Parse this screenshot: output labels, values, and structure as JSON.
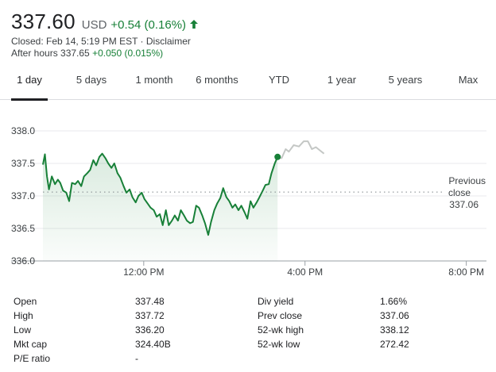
{
  "quote": {
    "price": "337.60",
    "currency": "USD",
    "change": "+0.54 (0.16%)",
    "closed_text": "Closed: Feb 14, 5:19 PM EST",
    "separator": " · ",
    "disclaimer": "Disclaimer",
    "after_hours_label": "After hours 337.65",
    "after_hours_change": "+0.050 (0.015%)",
    "up_color": "#188038"
  },
  "tabs": [
    {
      "label": "1 day",
      "active": true
    },
    {
      "label": "5 days",
      "active": false
    },
    {
      "label": "1 month",
      "active": false
    },
    {
      "label": "6 months",
      "active": false
    },
    {
      "label": "YTD",
      "active": false
    },
    {
      "label": "1 year",
      "active": false
    },
    {
      "label": "5 years",
      "active": false
    },
    {
      "label": "Max",
      "active": false
    }
  ],
  "chart_data": {
    "type": "line",
    "ylim": [
      336.0,
      338.0
    ],
    "y_ticks": [
      "338.0",
      "337.5",
      "337.0",
      "336.5",
      "336.0"
    ],
    "x_ticks": [
      {
        "label": "12:00 PM",
        "t": 12.0
      },
      {
        "label": "4:00 PM",
        "t": 16.0
      },
      {
        "label": "8:00 PM",
        "t": 20.0
      }
    ],
    "x_range_hours": [
      9.5,
      20.5
    ],
    "previous_close": {
      "value": 337.06,
      "label_line1": "Previous",
      "label_line2": "close",
      "label_value": "337.06"
    },
    "series": [
      {
        "session": "regular",
        "color": "#188038",
        "points": [
          [
            9.5,
            337.48
          ],
          [
            9.55,
            337.64
          ],
          [
            9.6,
            337.3
          ],
          [
            9.65,
            337.1
          ],
          [
            9.72,
            337.3
          ],
          [
            9.8,
            337.18
          ],
          [
            9.87,
            337.25
          ],
          [
            9.93,
            337.2
          ],
          [
            10.0,
            337.08
          ],
          [
            10.08,
            337.05
          ],
          [
            10.15,
            336.92
          ],
          [
            10.22,
            337.2
          ],
          [
            10.3,
            337.18
          ],
          [
            10.37,
            337.23
          ],
          [
            10.45,
            337.15
          ],
          [
            10.52,
            337.3
          ],
          [
            10.6,
            337.35
          ],
          [
            10.67,
            337.4
          ],
          [
            10.75,
            337.55
          ],
          [
            10.82,
            337.47
          ],
          [
            10.9,
            337.6
          ],
          [
            10.97,
            337.65
          ],
          [
            11.05,
            337.58
          ],
          [
            11.12,
            337.5
          ],
          [
            11.2,
            337.43
          ],
          [
            11.27,
            337.5
          ],
          [
            11.35,
            337.35
          ],
          [
            11.42,
            337.28
          ],
          [
            11.5,
            337.15
          ],
          [
            11.57,
            337.05
          ],
          [
            11.65,
            337.1
          ],
          [
            11.72,
            336.98
          ],
          [
            11.8,
            336.9
          ],
          [
            11.87,
            337.0
          ],
          [
            11.95,
            337.05
          ],
          [
            12.02,
            336.95
          ],
          [
            12.1,
            336.88
          ],
          [
            12.17,
            336.82
          ],
          [
            12.25,
            336.78
          ],
          [
            12.32,
            336.68
          ],
          [
            12.4,
            336.72
          ],
          [
            12.47,
            336.55
          ],
          [
            12.55,
            336.78
          ],
          [
            12.62,
            336.55
          ],
          [
            12.7,
            336.62
          ],
          [
            12.77,
            336.7
          ],
          [
            12.85,
            336.62
          ],
          [
            12.92,
            336.78
          ],
          [
            13.0,
            336.7
          ],
          [
            13.07,
            336.62
          ],
          [
            13.15,
            336.58
          ],
          [
            13.22,
            336.6
          ],
          [
            13.3,
            336.85
          ],
          [
            13.37,
            336.82
          ],
          [
            13.45,
            336.7
          ],
          [
            13.52,
            336.58
          ],
          [
            13.6,
            336.4
          ],
          [
            13.67,
            336.6
          ],
          [
            13.75,
            336.78
          ],
          [
            13.82,
            336.88
          ],
          [
            13.9,
            336.97
          ],
          [
            13.97,
            337.12
          ],
          [
            14.05,
            336.98
          ],
          [
            14.12,
            336.92
          ],
          [
            14.2,
            336.82
          ],
          [
            14.27,
            336.87
          ],
          [
            14.35,
            336.78
          ],
          [
            14.42,
            336.85
          ],
          [
            14.5,
            336.75
          ],
          [
            14.57,
            336.65
          ],
          [
            14.65,
            336.92
          ],
          [
            14.72,
            336.82
          ],
          [
            14.8,
            336.9
          ],
          [
            14.87,
            336.98
          ],
          [
            14.95,
            337.08
          ],
          [
            15.02,
            337.17
          ],
          [
            15.1,
            337.18
          ],
          [
            15.17,
            337.35
          ],
          [
            15.25,
            337.5
          ],
          [
            15.32,
            337.6
          ]
        ]
      },
      {
        "session": "after_hours",
        "color": "#c4c7c5",
        "points": [
          [
            15.32,
            337.6
          ],
          [
            15.42,
            337.58
          ],
          [
            15.52,
            337.72
          ],
          [
            15.6,
            337.68
          ],
          [
            15.72,
            337.78
          ],
          [
            15.85,
            337.76
          ],
          [
            15.97,
            337.84
          ],
          [
            16.07,
            337.84
          ],
          [
            16.17,
            337.72
          ],
          [
            16.27,
            337.75
          ],
          [
            16.37,
            337.7
          ],
          [
            16.47,
            337.65
          ]
        ]
      }
    ]
  },
  "stats": {
    "left": [
      {
        "label": "Open",
        "value": "337.48"
      },
      {
        "label": "High",
        "value": "337.72"
      },
      {
        "label": "Low",
        "value": "336.20"
      },
      {
        "label": "Mkt cap",
        "value": "324.40B"
      },
      {
        "label": "P/E ratio",
        "value": "-"
      }
    ],
    "right": [
      {
        "label": "Div yield",
        "value": "1.66%"
      },
      {
        "label": "Prev close",
        "value": "337.06"
      },
      {
        "label": "52-wk high",
        "value": "338.12"
      },
      {
        "label": "52-wk low",
        "value": "272.42"
      }
    ]
  }
}
